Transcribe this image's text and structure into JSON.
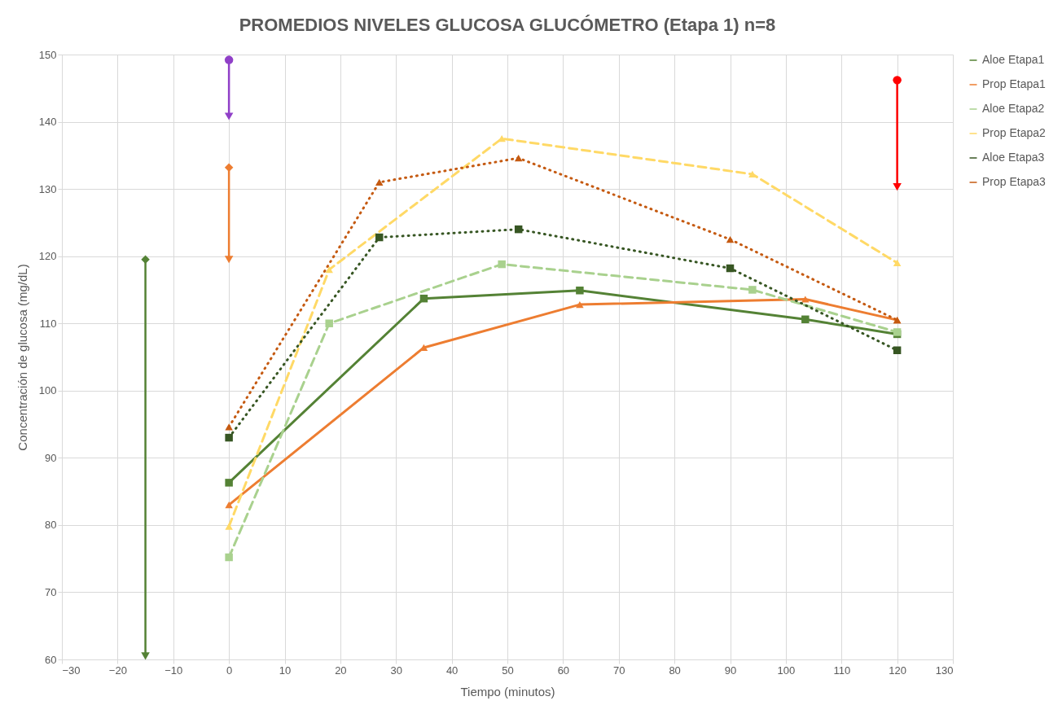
{
  "chart_data": {
    "type": "line",
    "title": "PROMEDIOS NIVELES GLUCOSA GLUCÓMETRO (Etapa 1) n=8",
    "xlabel": "Tiempo (minutos)",
    "ylabel": "Concentración de glucosa (mg/dL)",
    "xlim": [
      -30,
      130
    ],
    "xticks": [
      -30,
      -20,
      -10,
      0,
      10,
      20,
      30,
      40,
      50,
      60,
      70,
      80,
      90,
      100,
      110,
      120,
      130
    ],
    "ylim": [
      60,
      150
    ],
    "yticks": [
      60,
      70,
      80,
      90,
      100,
      110,
      120,
      130,
      140,
      150
    ],
    "grid": true,
    "legend": "right",
    "series": [
      {
        "name": "Aloe Etapa1",
        "color": "#548235",
        "x": [
          0,
          35,
          63,
          103.5,
          120
        ],
        "values": [
          86.3,
          113.7,
          114.9,
          110.6,
          108.4
        ],
        "marker": "square",
        "line_style": "solid"
      },
      {
        "name": "Prop Etapa1",
        "color": "#ed7d31",
        "x": [
          0,
          35,
          63,
          103.5,
          120
        ],
        "values": [
          83,
          106.4,
          112.8,
          113.6,
          110.5
        ],
        "marker": "triangle",
        "line_style": "solid"
      },
      {
        "name": "Aloe Etapa2",
        "color": "#a9d18e",
        "x": [
          0,
          18,
          49,
          94,
          120
        ],
        "values": [
          75.2,
          110,
          118.8,
          115,
          108.7
        ],
        "marker": "square",
        "line_style": "dashed"
      },
      {
        "name": "Prop Etapa2",
        "color": "#ffd966",
        "x": [
          0,
          18,
          49,
          94,
          120
        ],
        "values": [
          79.8,
          118,
          137.5,
          132.2,
          119
        ],
        "marker": "triangle",
        "line_style": "dashed"
      },
      {
        "name": "Aloe Etapa3",
        "color": "#375623",
        "x": [
          0,
          27,
          52,
          90,
          120
        ],
        "values": [
          93,
          122.8,
          124,
          118.2,
          106
        ],
        "marker": "square",
        "line_style": "dotted"
      },
      {
        "name": "Prop Etapa3",
        "color": "#c55a11",
        "x": [
          0,
          27,
          52,
          90,
          120
        ],
        "values": [
          94.6,
          131,
          134.6,
          122.5,
          110.5
        ],
        "marker": "triangle",
        "line_style": "dotted"
      },
      {
        "color": "#548235",
        "x": [
          -15,
          -15
        ],
        "values": [
          119.5,
          60.5
        ],
        "marker": "diamond",
        "line_style": "solid"
      },
      {
        "color": "#9040c8",
        "x": [
          0,
          0
        ],
        "values": [
          149.2,
          140.8
        ],
        "marker": "circle",
        "line_style": "solid"
      },
      {
        "color": "#ed7d31",
        "x": [
          0,
          0
        ],
        "values": [
          133.2,
          119.5
        ],
        "marker": "diamond",
        "line_style": "solid"
      },
      {
        "color": "#ff0000",
        "x": [
          120,
          120
        ],
        "values": [
          146.2,
          130.3
        ],
        "marker": "circle",
        "line_style": "solid"
      }
    ]
  }
}
